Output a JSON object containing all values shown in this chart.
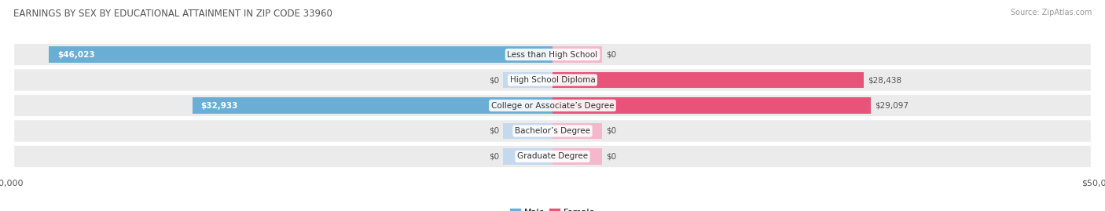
{
  "title": "EARNINGS BY SEX BY EDUCATIONAL ATTAINMENT IN ZIP CODE 33960",
  "source": "Source: ZipAtlas.com",
  "categories": [
    "Less than High School",
    "High School Diploma",
    "College or Associate’s Degree",
    "Bachelor’s Degree",
    "Graduate Degree"
  ],
  "male_values": [
    46023,
    0,
    32933,
    0,
    0
  ],
  "female_values": [
    0,
    28438,
    29097,
    0,
    0
  ],
  "male_color_dark": "#6aaed6",
  "male_color_light": "#c5d9ee",
  "female_color_dark": "#e8537a",
  "female_color_light": "#f4b8cc",
  "max_value": 50000,
  "row_bg_color": "#ebebeb",
  "label_value_color": "#555555",
  "title_color": "#555555",
  "legend_male_color": "#6aaed6",
  "legend_female_color": "#e8537a",
  "stub_size": 4500,
  "bar_height": 0.62,
  "font_size_bars": 7.5,
  "font_size_title": 8.5,
  "font_size_axis": 8,
  "font_size_legend": 8,
  "font_size_source": 7
}
